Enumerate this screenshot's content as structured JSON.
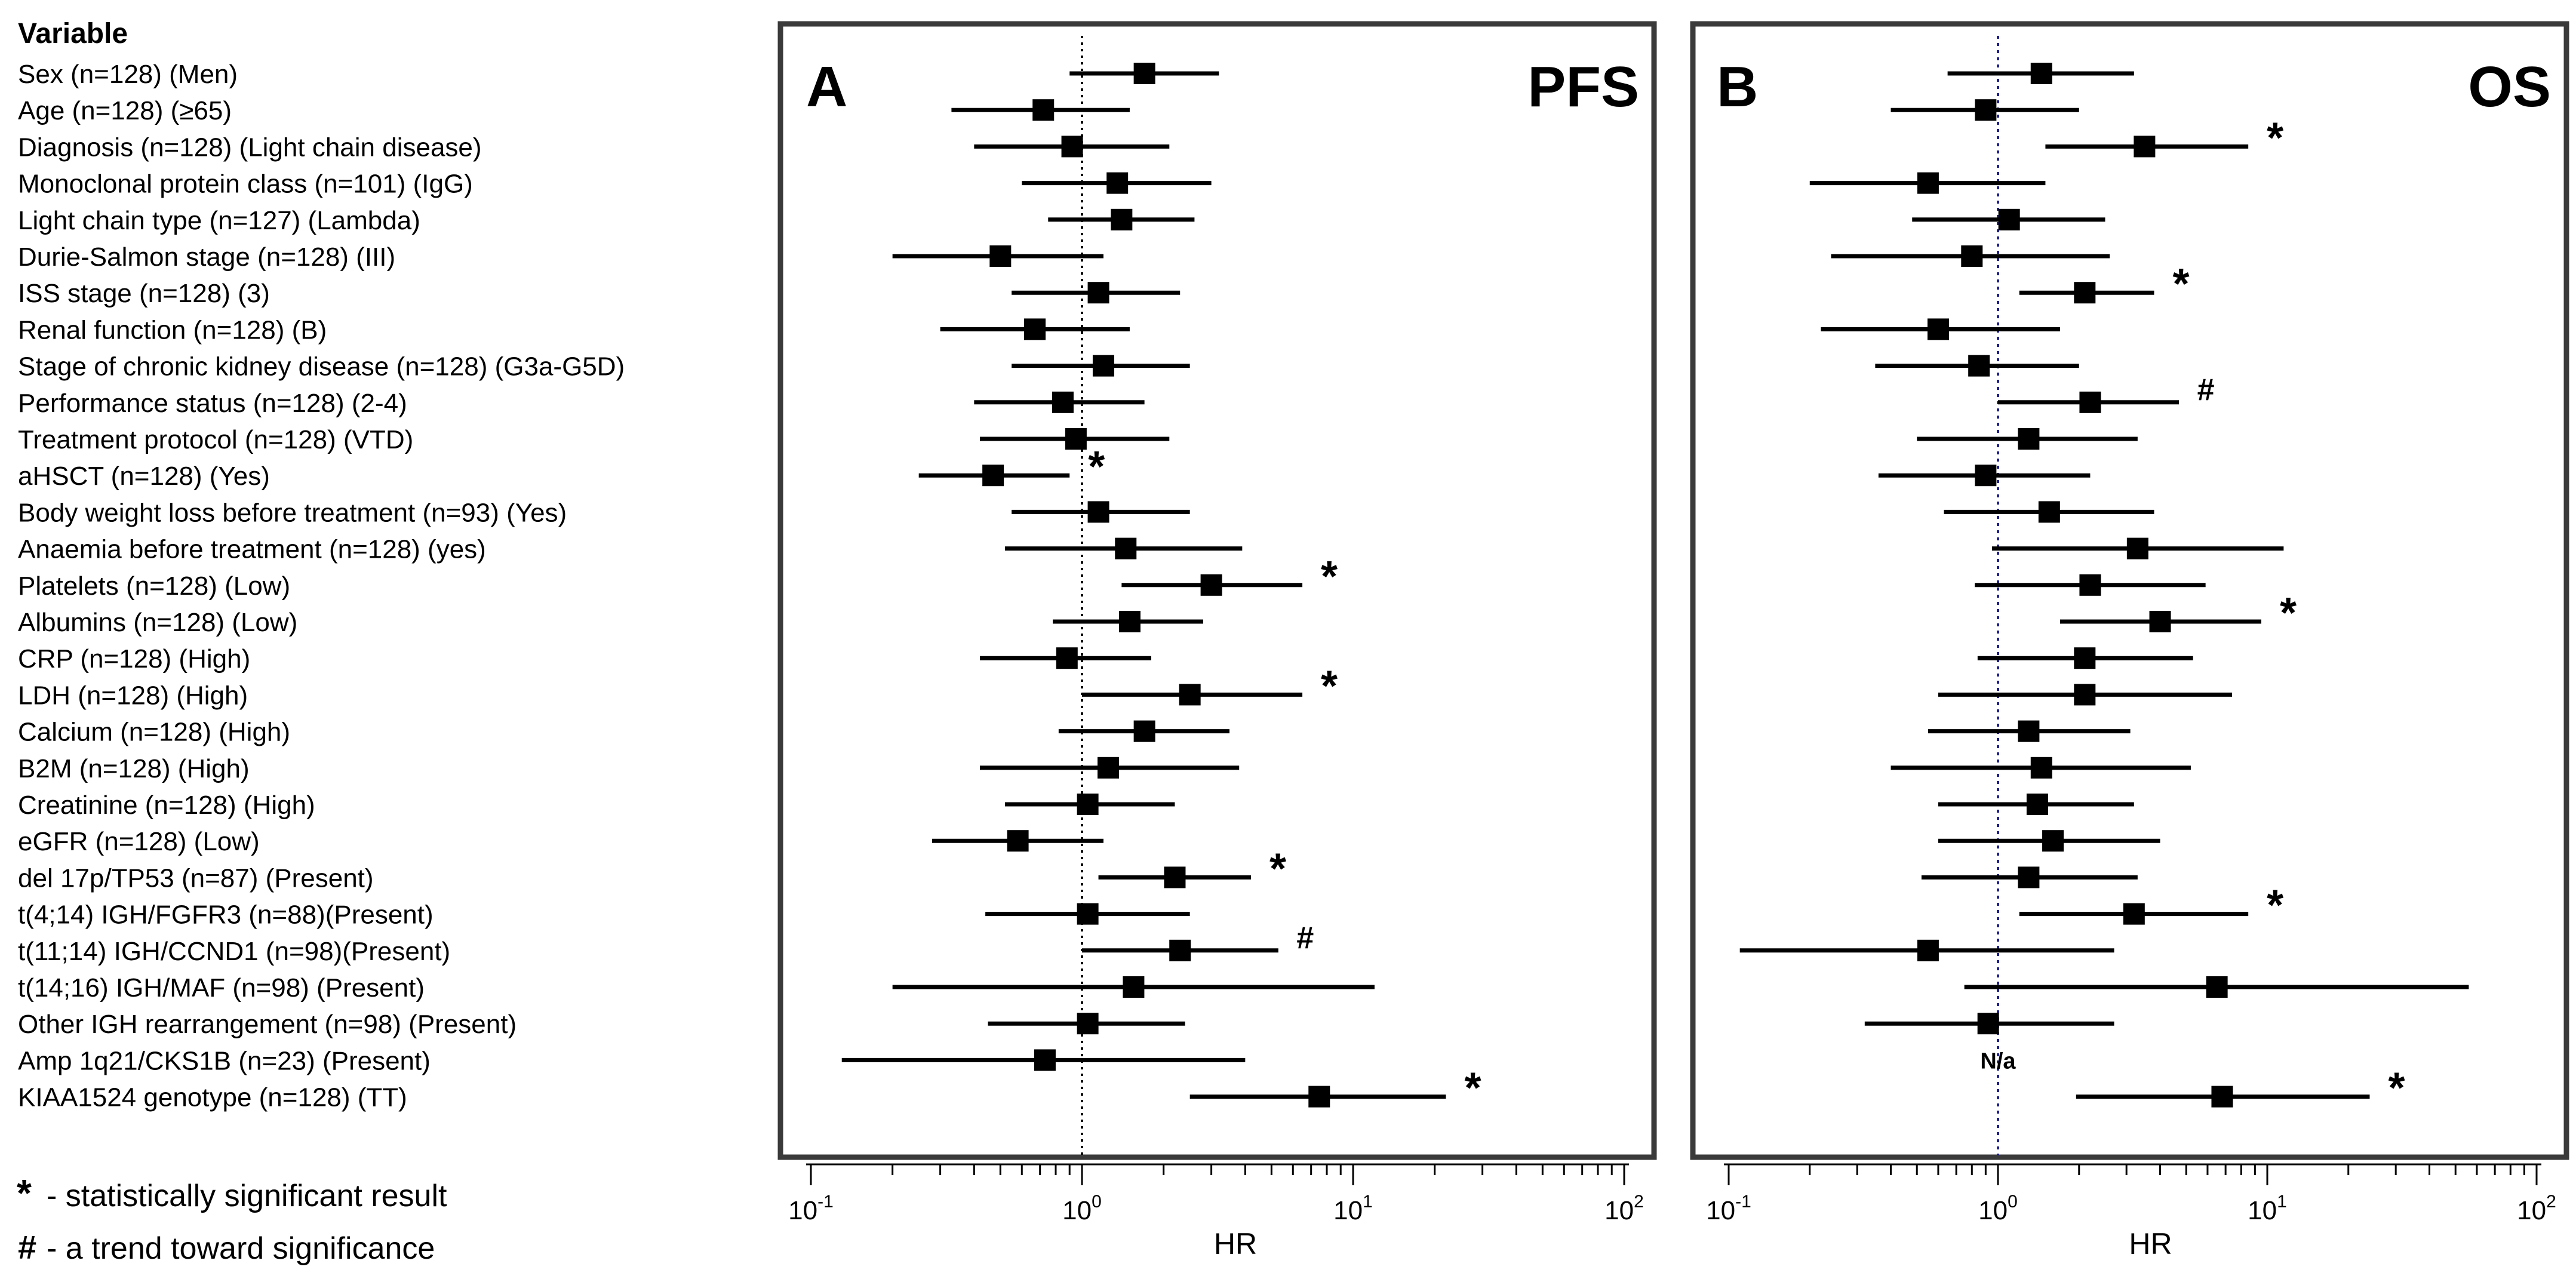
{
  "chart_data": [
    {
      "type": "forest",
      "panel_label": "A",
      "title": "PFS",
      "xlabel": "HR",
      "x_scale": "log10",
      "xlim": [
        0.1,
        100
      ],
      "x_ticks": [
        {
          "base": "10",
          "exp": "-1",
          "value": 0.1
        },
        {
          "base": "10",
          "exp": "0",
          "value": 1
        },
        {
          "base": "10",
          "exp": "1",
          "value": 10
        },
        {
          "base": "10",
          "exp": "2",
          "value": 100
        }
      ],
      "reference_line": 1,
      "rows": [
        {
          "hr": 1.7,
          "lo": 0.9,
          "hi": 3.2,
          "mark": ""
        },
        {
          "hr": 0.72,
          "lo": 0.33,
          "hi": 1.5,
          "mark": ""
        },
        {
          "hr": 0.92,
          "lo": 0.4,
          "hi": 2.1,
          "mark": ""
        },
        {
          "hr": 1.35,
          "lo": 0.6,
          "hi": 3.0,
          "mark": ""
        },
        {
          "hr": 1.4,
          "lo": 0.75,
          "hi": 2.6,
          "mark": ""
        },
        {
          "hr": 0.5,
          "lo": 0.2,
          "hi": 1.2,
          "mark": ""
        },
        {
          "hr": 1.15,
          "lo": 0.55,
          "hi": 2.3,
          "mark": ""
        },
        {
          "hr": 0.67,
          "lo": 0.3,
          "hi": 1.5,
          "mark": ""
        },
        {
          "hr": 1.2,
          "lo": 0.55,
          "hi": 2.5,
          "mark": ""
        },
        {
          "hr": 0.85,
          "lo": 0.4,
          "hi": 1.7,
          "mark": ""
        },
        {
          "hr": 0.95,
          "lo": 0.42,
          "hi": 2.1,
          "mark": ""
        },
        {
          "hr": 0.47,
          "lo": 0.25,
          "hi": 0.9,
          "mark": "*"
        },
        {
          "hr": 1.15,
          "lo": 0.55,
          "hi": 2.5,
          "mark": ""
        },
        {
          "hr": 1.45,
          "lo": 0.52,
          "hi": 3.9,
          "mark": ""
        },
        {
          "hr": 3.0,
          "lo": 1.4,
          "hi": 6.5,
          "mark": "*"
        },
        {
          "hr": 1.5,
          "lo": 0.78,
          "hi": 2.8,
          "mark": ""
        },
        {
          "hr": 0.88,
          "lo": 0.42,
          "hi": 1.8,
          "mark": ""
        },
        {
          "hr": 2.5,
          "lo": 1.0,
          "hi": 6.5,
          "mark": "*"
        },
        {
          "hr": 1.7,
          "lo": 0.82,
          "hi": 3.5,
          "mark": ""
        },
        {
          "hr": 1.25,
          "lo": 0.42,
          "hi": 3.8,
          "mark": ""
        },
        {
          "hr": 1.05,
          "lo": 0.52,
          "hi": 2.2,
          "mark": ""
        },
        {
          "hr": 0.58,
          "lo": 0.28,
          "hi": 1.2,
          "mark": ""
        },
        {
          "hr": 2.2,
          "lo": 1.15,
          "hi": 4.2,
          "mark": "*"
        },
        {
          "hr": 1.05,
          "lo": 0.44,
          "hi": 2.5,
          "mark": ""
        },
        {
          "hr": 2.3,
          "lo": 1.0,
          "hi": 5.3,
          "mark": "#"
        },
        {
          "hr": 1.55,
          "lo": 0.2,
          "hi": 12,
          "mark": ""
        },
        {
          "hr": 1.05,
          "lo": 0.45,
          "hi": 2.4,
          "mark": ""
        },
        {
          "hr": 0.73,
          "lo": 0.13,
          "hi": 4.0,
          "mark": ""
        },
        {
          "hr": 7.5,
          "lo": 2.5,
          "hi": 22,
          "mark": "*"
        }
      ]
    },
    {
      "type": "forest",
      "panel_label": "B",
      "title": "OS",
      "xlabel": "HR",
      "x_scale": "log10",
      "xlim": [
        0.1,
        100
      ],
      "x_ticks": [
        {
          "base": "10",
          "exp": "-1",
          "value": 0.1
        },
        {
          "base": "10",
          "exp": "0",
          "value": 1
        },
        {
          "base": "10",
          "exp": "1",
          "value": 10
        },
        {
          "base": "10",
          "exp": "2",
          "value": 100
        }
      ],
      "reference_line": 1,
      "rows": [
        {
          "hr": 1.45,
          "lo": 0.65,
          "hi": 3.2,
          "mark": ""
        },
        {
          "hr": 0.9,
          "lo": 0.4,
          "hi": 2.0,
          "mark": ""
        },
        {
          "hr": 3.5,
          "lo": 1.5,
          "hi": 8.5,
          "mark": "*"
        },
        {
          "hr": 0.55,
          "lo": 0.2,
          "hi": 1.5,
          "mark": ""
        },
        {
          "hr": 1.1,
          "lo": 0.48,
          "hi": 2.5,
          "mark": ""
        },
        {
          "hr": 0.8,
          "lo": 0.24,
          "hi": 2.6,
          "mark": ""
        },
        {
          "hr": 2.1,
          "lo": 1.2,
          "hi": 3.8,
          "mark": "*"
        },
        {
          "hr": 0.6,
          "lo": 0.22,
          "hi": 1.7,
          "mark": ""
        },
        {
          "hr": 0.85,
          "lo": 0.35,
          "hi": 2.0,
          "mark": ""
        },
        {
          "hr": 2.2,
          "lo": 1.0,
          "hi": 4.7,
          "mark": "#"
        },
        {
          "hr": 1.3,
          "lo": 0.5,
          "hi": 3.3,
          "mark": ""
        },
        {
          "hr": 0.9,
          "lo": 0.36,
          "hi": 2.2,
          "mark": ""
        },
        {
          "hr": 1.55,
          "lo": 0.63,
          "hi": 3.8,
          "mark": ""
        },
        {
          "hr": 3.3,
          "lo": 0.95,
          "hi": 11.5,
          "mark": ""
        },
        {
          "hr": 2.2,
          "lo": 0.82,
          "hi": 5.9,
          "mark": ""
        },
        {
          "hr": 4.0,
          "lo": 1.7,
          "hi": 9.5,
          "mark": "*"
        },
        {
          "hr": 2.1,
          "lo": 0.84,
          "hi": 5.3,
          "mark": ""
        },
        {
          "hr": 2.1,
          "lo": 0.6,
          "hi": 7.4,
          "mark": ""
        },
        {
          "hr": 1.3,
          "lo": 0.55,
          "hi": 3.1,
          "mark": ""
        },
        {
          "hr": 1.45,
          "lo": 0.4,
          "hi": 5.2,
          "mark": ""
        },
        {
          "hr": 1.4,
          "lo": 0.6,
          "hi": 3.2,
          "mark": ""
        },
        {
          "hr": 1.6,
          "lo": 0.6,
          "hi": 4.0,
          "mark": ""
        },
        {
          "hr": 1.3,
          "lo": 0.52,
          "hi": 3.3,
          "mark": ""
        },
        {
          "hr": 3.2,
          "lo": 1.2,
          "hi": 8.5,
          "mark": "*"
        },
        {
          "hr": 0.55,
          "lo": 0.11,
          "hi": 2.7,
          "mark": ""
        },
        {
          "hr": 6.5,
          "lo": 0.75,
          "hi": 56,
          "mark": ""
        },
        {
          "hr": 0.92,
          "lo": 0.32,
          "hi": 2.7,
          "mark": ""
        },
        {
          "hr": null,
          "lo": null,
          "hi": null,
          "mark": "",
          "note": "N/a"
        },
        {
          "hr": 6.8,
          "lo": 1.95,
          "hi": 24,
          "mark": "*"
        }
      ]
    }
  ],
  "variables": {
    "header": "Variable",
    "items": [
      "Sex (n=128) (Men)",
      "Age (n=128) (≥65)",
      "Diagnosis (n=128) (Light chain disease)",
      "Monoclonal protein class (n=101) (IgG)",
      "Light chain type (n=127) (Lambda)",
      "Durie-Salmon stage (n=128) (III)",
      "ISS stage  (n=128) (3)",
      "Renal function (n=128) (B)",
      "Stage of chronic kidney disease  (n=128) (G3a-G5D)",
      "Performance status (n=128) (2-4)",
      "Treatment protocol (n=128) (VTD)",
      "aHSCT (n=128) (Yes)",
      "Body weight loss before treatment (n=93) (Yes)",
      "Anaemia before treatment (n=128) (yes)",
      "Platelets (n=128) (Low)",
      "Albumins  (n=128) (Low)",
      "CRP  (n=128) (High)",
      "LDH (n=128) (High)",
      "Calcium (n=128) (High)",
      "B2M (n=128) (High)",
      "Creatinine (n=128) (High)",
      "eGFR (n=128) (Low)",
      "del 17p/TP53 (n=87) (Present)",
      "t(4;14) IGH/FGFR3 (n=88)(Present)",
      "t(11;14) IGH/CCND1 (n=98)(Present)",
      "t(14;16) IGH/MAF (n=98) (Present)",
      "Other IGH rearrangement (n=98) (Present)",
      "Amp 1q21/CKS1B  (n=23) (Present)",
      "KIAA1524 genotype (n=128) (TT)"
    ]
  },
  "legend": {
    "significant_symbol": "*",
    "significant_text": "- statistically significant result",
    "trend_symbol": "#",
    "trend_text": "- a trend toward significance"
  },
  "colors": {
    "marker": "#000000",
    "reference_line_A": "#000000",
    "reference_line_B": "#1f1f8f",
    "frame": "#3a3a3a"
  }
}
